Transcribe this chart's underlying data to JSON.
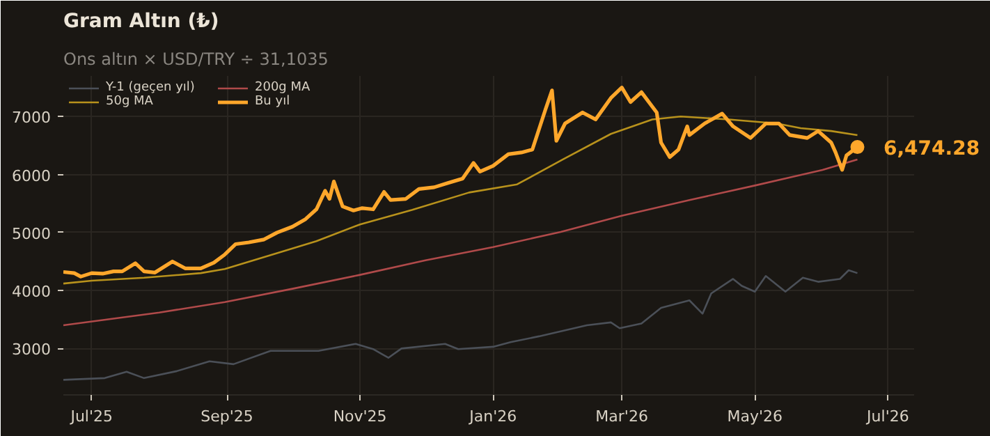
{
  "chart_data": {
    "type": "line",
    "title": "Gram Altın (₺)",
    "subtitle": "Ons altın × USD/TRY ÷ 31,1035",
    "xlim": [
      "2025-06-18",
      "2026-07-13"
    ],
    "ylim": [
      2200,
      7700
    ],
    "xticks": [
      {
        "value": "2025-07-01",
        "label": "Jul'25"
      },
      {
        "value": "2025-09-01",
        "label": "Sep'25"
      },
      {
        "value": "2025-11-01",
        "label": "Nov'25"
      },
      {
        "value": "2026-01-01",
        "label": "Jan'26"
      },
      {
        "value": "2026-03-01",
        "label": "Mar'26"
      },
      {
        "value": "2026-05-01",
        "label": "May'26"
      },
      {
        "value": "2026-07-01",
        "label": "Jul'26"
      }
    ],
    "yticks": [
      3000,
      4000,
      5000,
      6000,
      7000
    ],
    "grid": true,
    "legend": "top left",
    "annotations": [
      {
        "text": "6,474.28",
        "x": "2026-06-17",
        "y": 6474.28
      }
    ],
    "series": [
      {
        "name": "Y-1 (geçen yıl)",
        "color": "#4b5058",
        "x": [
          "2025-06-18",
          "2025-07-07",
          "2025-07-17",
          "2025-07-25",
          "2025-08-09",
          "2025-08-24",
          "2025-09-04",
          "2025-09-21",
          "2025-10-13",
          "2025-10-30",
          "2025-11-07",
          "2025-11-14",
          "2025-11-20",
          "2025-12-10",
          "2025-12-16",
          "2026-01-01",
          "2026-01-09",
          "2026-01-22",
          "2026-02-13",
          "2026-02-24",
          "2026-02-28",
          "2026-03-10",
          "2026-03-19",
          "2026-04-01",
          "2026-04-07",
          "2026-04-11",
          "2026-04-21",
          "2026-04-25",
          "2026-05-01",
          "2026-05-06",
          "2026-05-15",
          "2026-05-23",
          "2026-05-30",
          "2026-06-09",
          "2026-06-13",
          "2026-06-17"
        ],
        "values": [
          2460,
          2490,
          2600,
          2490,
          2610,
          2780,
          2730,
          2960,
          2960,
          3080,
          2990,
          2840,
          3000,
          3080,
          2990,
          3030,
          3110,
          3210,
          3400,
          3450,
          3350,
          3430,
          3700,
          3830,
          3600,
          3950,
          4200,
          4080,
          3980,
          4250,
          3980,
          4220,
          4150,
          4200,
          4350,
          4300
        ]
      },
      {
        "name": "50g MA",
        "color": "#b8921c",
        "x": [
          "2025-06-18",
          "2025-07-01",
          "2025-07-25",
          "2025-08-20",
          "2025-08-31",
          "2025-09-20",
          "2025-10-12",
          "2025-11-01",
          "2025-11-25",
          "2025-12-21",
          "2026-01-12",
          "2026-02-02",
          "2026-02-24",
          "2026-03-15",
          "2026-03-28",
          "2026-04-19",
          "2026-05-11",
          "2026-05-22",
          "2026-06-05",
          "2026-06-17"
        ],
        "values": [
          4120,
          4170,
          4220,
          4300,
          4370,
          4600,
          4850,
          5140,
          5390,
          5690,
          5830,
          6260,
          6700,
          6950,
          7000,
          6950,
          6880,
          6800,
          6750,
          6680
        ]
      },
      {
        "name": "200g MA",
        "color": "#b04a4a",
        "x": [
          "2025-06-18",
          "2025-08-01",
          "2025-08-31",
          "2025-10-01",
          "2025-11-01",
          "2025-12-01",
          "2026-01-01",
          "2026-02-01",
          "2026-03-01",
          "2026-04-01",
          "2026-05-01",
          "2026-06-01",
          "2026-06-17"
        ],
        "values": [
          3400,
          3620,
          3800,
          4030,
          4270,
          4520,
          4750,
          5010,
          5290,
          5560,
          5810,
          6080,
          6260
        ]
      },
      {
        "name": "Bu yıl",
        "color": "#ffa72b",
        "x": [
          "2025-06-18",
          "2025-06-23",
          "2025-06-26",
          "2025-07-01",
          "2025-07-06",
          "2025-07-11",
          "2025-07-15",
          "2025-07-21",
          "2025-07-25",
          "2025-07-30",
          "2025-08-07",
          "2025-08-13",
          "2025-08-20",
          "2025-08-26",
          "2025-08-31",
          "2025-09-05",
          "2025-09-11",
          "2025-09-18",
          "2025-09-24",
          "2025-10-01",
          "2025-10-07",
          "2025-10-12",
          "2025-10-16",
          "2025-10-18",
          "2025-10-20",
          "2025-10-24",
          "2025-10-29",
          "2025-11-02",
          "2025-11-07",
          "2025-11-12",
          "2025-11-15",
          "2025-11-22",
          "2025-11-28",
          "2025-12-05",
          "2025-12-11",
          "2025-12-18",
          "2025-12-23",
          "2025-12-26",
          "2026-01-01",
          "2026-01-08",
          "2026-01-14",
          "2026-01-19",
          "2026-01-25",
          "2026-01-28",
          "2026-01-30",
          "2026-02-03",
          "2026-02-11",
          "2026-02-17",
          "2026-02-24",
          "2026-03-01",
          "2026-03-05",
          "2026-03-10",
          "2026-03-17",
          "2026-03-19",
          "2026-03-23",
          "2026-03-27",
          "2026-03-31",
          "2026-04-01",
          "2026-04-08",
          "2026-04-16",
          "2026-04-21",
          "2026-04-29",
          "2026-05-06",
          "2026-05-12",
          "2026-05-17",
          "2026-05-25",
          "2026-05-30",
          "2026-06-05",
          "2026-06-07",
          "2026-06-10",
          "2026-06-12",
          "2026-06-17"
        ],
        "values": [
          4320,
          4300,
          4240,
          4300,
          4290,
          4330,
          4330,
          4470,
          4330,
          4310,
          4500,
          4380,
          4380,
          4480,
          4620,
          4800,
          4830,
          4880,
          5000,
          5100,
          5230,
          5400,
          5720,
          5580,
          5880,
          5450,
          5380,
          5420,
          5400,
          5700,
          5560,
          5580,
          5750,
          5780,
          5850,
          5930,
          6200,
          6050,
          6150,
          6350,
          6380,
          6430,
          7120,
          7450,
          6580,
          6880,
          7070,
          6950,
          7320,
          7500,
          7250,
          7420,
          7070,
          6550,
          6300,
          6430,
          6830,
          6680,
          6880,
          7050,
          6830,
          6630,
          6880,
          6880,
          6680,
          6630,
          6750,
          6550,
          6380,
          6080,
          6330,
          6474.28
        ]
      }
    ]
  }
}
